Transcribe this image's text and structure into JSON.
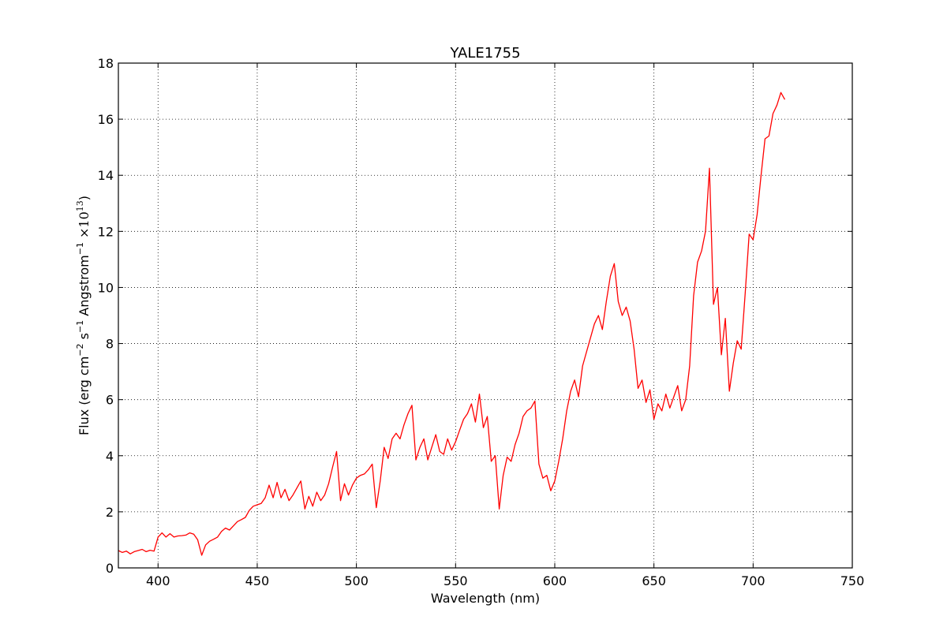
{
  "chart_data": {
    "type": "line",
    "title": "YALE1755",
    "xlabel": "Wavelength (nm)",
    "ylabel_main": "Flux  (erg cm",
    "ylabel_sup1": "−2",
    "ylabel_mid1": "  s",
    "ylabel_sup2": "−1",
    "ylabel_mid2": "  Angstrom",
    "ylabel_sup3": "−1",
    "ylabel_mid3": "  ×10",
    "ylabel_sup4": "13",
    "ylabel_end": ")",
    "xlim": [
      380,
      750
    ],
    "ylim": [
      0,
      18
    ],
    "xticks": [
      400,
      450,
      500,
      550,
      600,
      650,
      700,
      750
    ],
    "yticks": [
      0,
      2,
      4,
      6,
      8,
      10,
      12,
      14,
      16,
      18
    ],
    "grid": true,
    "series": [
      {
        "color": "#ff0000",
        "points": [
          [
            380,
            0.62
          ],
          [
            382,
            0.55
          ],
          [
            384,
            0.6
          ],
          [
            386,
            0.5
          ],
          [
            388,
            0.58
          ],
          [
            390,
            0.62
          ],
          [
            392,
            0.66
          ],
          [
            394,
            0.58
          ],
          [
            396,
            0.63
          ],
          [
            398,
            0.6
          ],
          [
            400,
            1.1
          ],
          [
            402,
            1.25
          ],
          [
            404,
            1.1
          ],
          [
            406,
            1.22
          ],
          [
            408,
            1.1
          ],
          [
            410,
            1.14
          ],
          [
            412,
            1.15
          ],
          [
            414,
            1.17
          ],
          [
            416,
            1.25
          ],
          [
            418,
            1.2
          ],
          [
            420,
            1.0
          ],
          [
            422,
            0.45
          ],
          [
            424,
            0.82
          ],
          [
            426,
            0.95
          ],
          [
            428,
            1.02
          ],
          [
            430,
            1.1
          ],
          [
            432,
            1.3
          ],
          [
            434,
            1.42
          ],
          [
            436,
            1.35
          ],
          [
            438,
            1.5
          ],
          [
            440,
            1.65
          ],
          [
            442,
            1.72
          ],
          [
            444,
            1.8
          ],
          [
            446,
            2.05
          ],
          [
            448,
            2.2
          ],
          [
            450,
            2.25
          ],
          [
            452,
            2.3
          ],
          [
            454,
            2.5
          ],
          [
            456,
            2.95
          ],
          [
            458,
            2.5
          ],
          [
            460,
            3.05
          ],
          [
            462,
            2.5
          ],
          [
            464,
            2.8
          ],
          [
            466,
            2.4
          ],
          [
            468,
            2.6
          ],
          [
            470,
            2.85
          ],
          [
            472,
            3.1
          ],
          [
            474,
            2.1
          ],
          [
            476,
            2.55
          ],
          [
            478,
            2.2
          ],
          [
            480,
            2.7
          ],
          [
            482,
            2.4
          ],
          [
            484,
            2.6
          ],
          [
            486,
            3.0
          ],
          [
            488,
            3.6
          ],
          [
            490,
            4.15
          ],
          [
            492,
            2.4
          ],
          [
            494,
            3.0
          ],
          [
            496,
            2.6
          ],
          [
            498,
            2.95
          ],
          [
            500,
            3.2
          ],
          [
            502,
            3.3
          ],
          [
            504,
            3.35
          ],
          [
            506,
            3.5
          ],
          [
            508,
            3.7
          ],
          [
            510,
            2.15
          ],
          [
            512,
            3.1
          ],
          [
            514,
            4.3
          ],
          [
            516,
            3.9
          ],
          [
            518,
            4.6
          ],
          [
            520,
            4.8
          ],
          [
            522,
            4.6
          ],
          [
            524,
            5.1
          ],
          [
            526,
            5.5
          ],
          [
            528,
            5.8
          ],
          [
            530,
            3.85
          ],
          [
            532,
            4.3
          ],
          [
            534,
            4.6
          ],
          [
            536,
            3.85
          ],
          [
            538,
            4.3
          ],
          [
            540,
            4.75
          ],
          [
            542,
            4.15
          ],
          [
            544,
            4.05
          ],
          [
            546,
            4.6
          ],
          [
            548,
            4.2
          ],
          [
            550,
            4.5
          ],
          [
            552,
            4.9
          ],
          [
            554,
            5.3
          ],
          [
            556,
            5.5
          ],
          [
            558,
            5.85
          ],
          [
            560,
            5.2
          ],
          [
            562,
            6.2
          ],
          [
            564,
            5.0
          ],
          [
            566,
            5.4
          ],
          [
            568,
            3.8
          ],
          [
            570,
            4.0
          ],
          [
            572,
            2.1
          ],
          [
            574,
            3.3
          ],
          [
            576,
            3.95
          ],
          [
            578,
            3.8
          ],
          [
            580,
            4.4
          ],
          [
            582,
            4.8
          ],
          [
            584,
            5.4
          ],
          [
            586,
            5.6
          ],
          [
            588,
            5.7
          ],
          [
            590,
            5.95
          ],
          [
            592,
            3.7
          ],
          [
            594,
            3.2
          ],
          [
            596,
            3.3
          ],
          [
            598,
            2.75
          ],
          [
            600,
            3.1
          ],
          [
            602,
            3.8
          ],
          [
            604,
            4.6
          ],
          [
            606,
            5.6
          ],
          [
            608,
            6.3
          ],
          [
            610,
            6.7
          ],
          [
            612,
            6.1
          ],
          [
            614,
            7.2
          ],
          [
            616,
            7.7
          ],
          [
            618,
            8.2
          ],
          [
            620,
            8.7
          ],
          [
            622,
            9.0
          ],
          [
            624,
            8.5
          ],
          [
            626,
            9.5
          ],
          [
            628,
            10.4
          ],
          [
            630,
            10.85
          ],
          [
            632,
            9.5
          ],
          [
            634,
            9.0
          ],
          [
            636,
            9.3
          ],
          [
            638,
            8.8
          ],
          [
            640,
            7.8
          ],
          [
            642,
            6.4
          ],
          [
            644,
            6.7
          ],
          [
            646,
            5.9
          ],
          [
            648,
            6.35
          ],
          [
            650,
            5.3
          ],
          [
            652,
            5.85
          ],
          [
            654,
            5.6
          ],
          [
            656,
            6.2
          ],
          [
            658,
            5.7
          ],
          [
            660,
            6.1
          ],
          [
            662,
            6.5
          ],
          [
            664,
            5.6
          ],
          [
            666,
            6.0
          ],
          [
            668,
            7.2
          ],
          [
            670,
            9.7
          ],
          [
            672,
            10.9
          ],
          [
            674,
            11.3
          ],
          [
            676,
            12.0
          ],
          [
            678,
            14.25
          ],
          [
            680,
            9.4
          ],
          [
            682,
            10.0
          ],
          [
            684,
            7.6
          ],
          [
            686,
            8.9
          ],
          [
            688,
            6.3
          ],
          [
            690,
            7.3
          ],
          [
            692,
            8.1
          ],
          [
            694,
            7.8
          ],
          [
            696,
            9.8
          ],
          [
            698,
            11.9
          ],
          [
            700,
            11.7
          ],
          [
            702,
            12.6
          ],
          [
            704,
            14.0
          ],
          [
            706,
            15.3
          ],
          [
            708,
            15.4
          ],
          [
            710,
            16.2
          ],
          [
            712,
            16.5
          ],
          [
            714,
            16.95
          ],
          [
            716,
            16.7
          ]
        ]
      }
    ]
  }
}
